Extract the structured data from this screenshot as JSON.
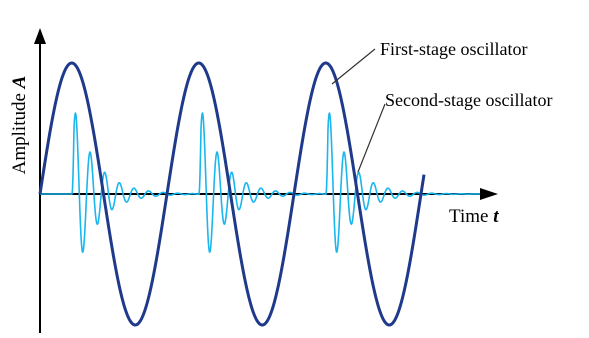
{
  "labels": {
    "y_axis_text": "Amplitude ",
    "y_axis_symbol": "A",
    "x_axis_text": "Time ",
    "x_axis_symbol": "t",
    "first_stage": "First-stage oscillator",
    "second_stage": "Second-stage oscillator"
  },
  "colors": {
    "axis": "#000000",
    "first_stage": "#1f3a8a",
    "second_stage": "#1ab6ee",
    "leader": "#333333"
  }
}
